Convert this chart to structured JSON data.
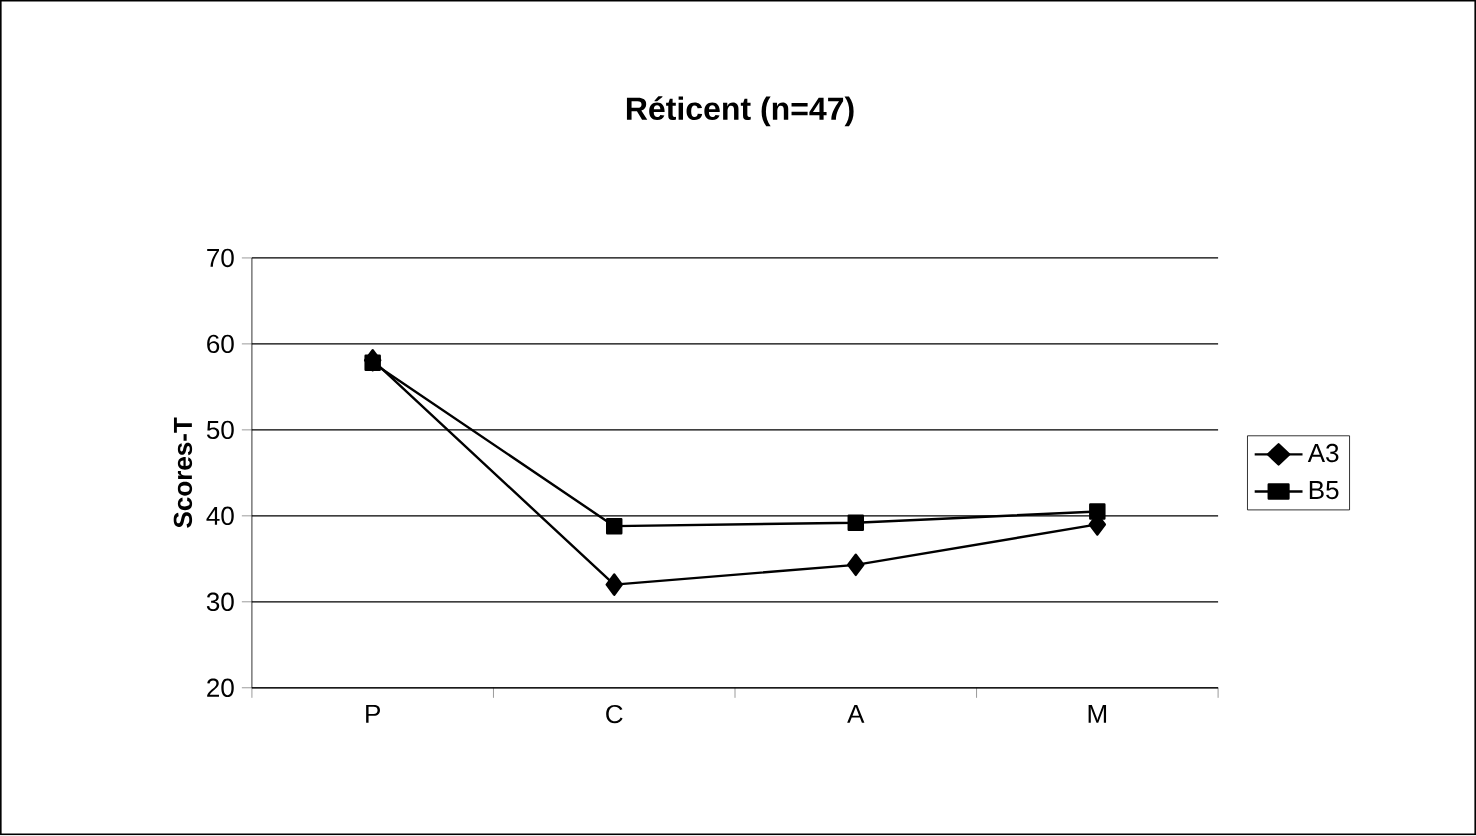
{
  "chart_data": {
    "type": "line",
    "title": "Réticent (n=47)",
    "ylabel": "Scores-T",
    "categories": [
      "P",
      "C",
      "A",
      "M"
    ],
    "series": [
      {
        "name": "A3",
        "color": "#000000",
        "marker": "diamond",
        "values": [
          58.1,
          32.0,
          34.3,
          39.0
        ]
      },
      {
        "name": "B5",
        "color": "#000000",
        "marker": "square",
        "values": [
          57.8,
          38.8,
          39.2,
          40.5
        ]
      }
    ],
    "ylim": [
      20,
      70
    ],
    "yticks": [
      20,
      30,
      40,
      50,
      60,
      70
    ],
    "grid": "y",
    "legend": "right",
    "line_style": "solid"
  }
}
